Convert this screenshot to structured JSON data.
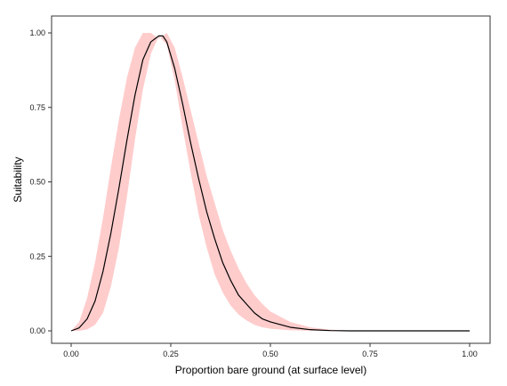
{
  "chart_data": {
    "type": "line",
    "title": "",
    "xlabel": "Proportion bare ground (at surface level)",
    "ylabel": "Suitability",
    "xlim": [
      0.0,
      1.0
    ],
    "ylim": [
      0.0,
      1.0
    ],
    "x_ticks": [
      "0.00",
      "0.25",
      "0.50",
      "0.75",
      "1.00"
    ],
    "y_ticks": [
      "0.00",
      "0.25",
      "0.50",
      "0.75",
      "1.00"
    ],
    "grid": false,
    "colors": {
      "line": "#000000",
      "band": "#ffcccc",
      "frame": "#333333"
    },
    "series": [
      {
        "role": "mean",
        "x": [
          0.0,
          0.02,
          0.04,
          0.06,
          0.08,
          0.1,
          0.12,
          0.14,
          0.16,
          0.18,
          0.2,
          0.22,
          0.23,
          0.24,
          0.26,
          0.28,
          0.3,
          0.32,
          0.34,
          0.36,
          0.38,
          0.4,
          0.42,
          0.44,
          0.46,
          0.48,
          0.5,
          0.55,
          0.6,
          0.65,
          0.7,
          0.75,
          0.8,
          0.9,
          1.0
        ],
        "y": [
          0.0,
          0.01,
          0.04,
          0.1,
          0.2,
          0.33,
          0.48,
          0.64,
          0.79,
          0.91,
          0.97,
          0.99,
          0.99,
          0.97,
          0.88,
          0.76,
          0.63,
          0.51,
          0.4,
          0.31,
          0.23,
          0.17,
          0.12,
          0.09,
          0.06,
          0.04,
          0.03,
          0.012,
          0.004,
          0.001,
          0.0,
          0.0,
          0.0,
          0.0,
          0.0
        ]
      },
      {
        "role": "band-upper",
        "x": [
          0.0,
          0.02,
          0.04,
          0.06,
          0.08,
          0.1,
          0.12,
          0.14,
          0.16,
          0.18,
          0.2,
          0.22,
          0.24,
          0.26,
          0.28,
          0.3,
          0.32,
          0.34,
          0.36,
          0.38,
          0.4,
          0.42,
          0.44,
          0.46,
          0.48,
          0.5,
          0.55,
          0.6,
          0.65,
          0.7,
          0.75,
          0.8,
          0.9,
          1.0
        ],
        "y": [
          0.0,
          0.03,
          0.11,
          0.23,
          0.38,
          0.55,
          0.71,
          0.85,
          0.95,
          1.0,
          1.0,
          0.98,
          1.0,
          0.95,
          0.85,
          0.74,
          0.63,
          0.52,
          0.43,
          0.34,
          0.27,
          0.21,
          0.16,
          0.12,
          0.09,
          0.065,
          0.03,
          0.012,
          0.004,
          0.001,
          0.0,
          0.0,
          0.0,
          0.0
        ]
      },
      {
        "role": "band-lower",
        "x": [
          0.0,
          0.02,
          0.04,
          0.06,
          0.08,
          0.1,
          0.12,
          0.14,
          0.16,
          0.18,
          0.2,
          0.22,
          0.24,
          0.26,
          0.28,
          0.3,
          0.32,
          0.34,
          0.36,
          0.38,
          0.4,
          0.42,
          0.44,
          0.46,
          0.48,
          0.5,
          0.55,
          0.6,
          0.65,
          0.7,
          0.75,
          0.8,
          0.9,
          1.0
        ],
        "y": [
          0.0,
          0.0,
          0.005,
          0.02,
          0.06,
          0.15,
          0.28,
          0.45,
          0.64,
          0.81,
          0.93,
          0.99,
          0.96,
          0.84,
          0.68,
          0.53,
          0.39,
          0.28,
          0.19,
          0.13,
          0.085,
          0.055,
          0.035,
          0.02,
          0.012,
          0.007,
          0.002,
          0.0005,
          0.0,
          0.0,
          0.0,
          0.0,
          0.0,
          0.0
        ]
      }
    ]
  }
}
